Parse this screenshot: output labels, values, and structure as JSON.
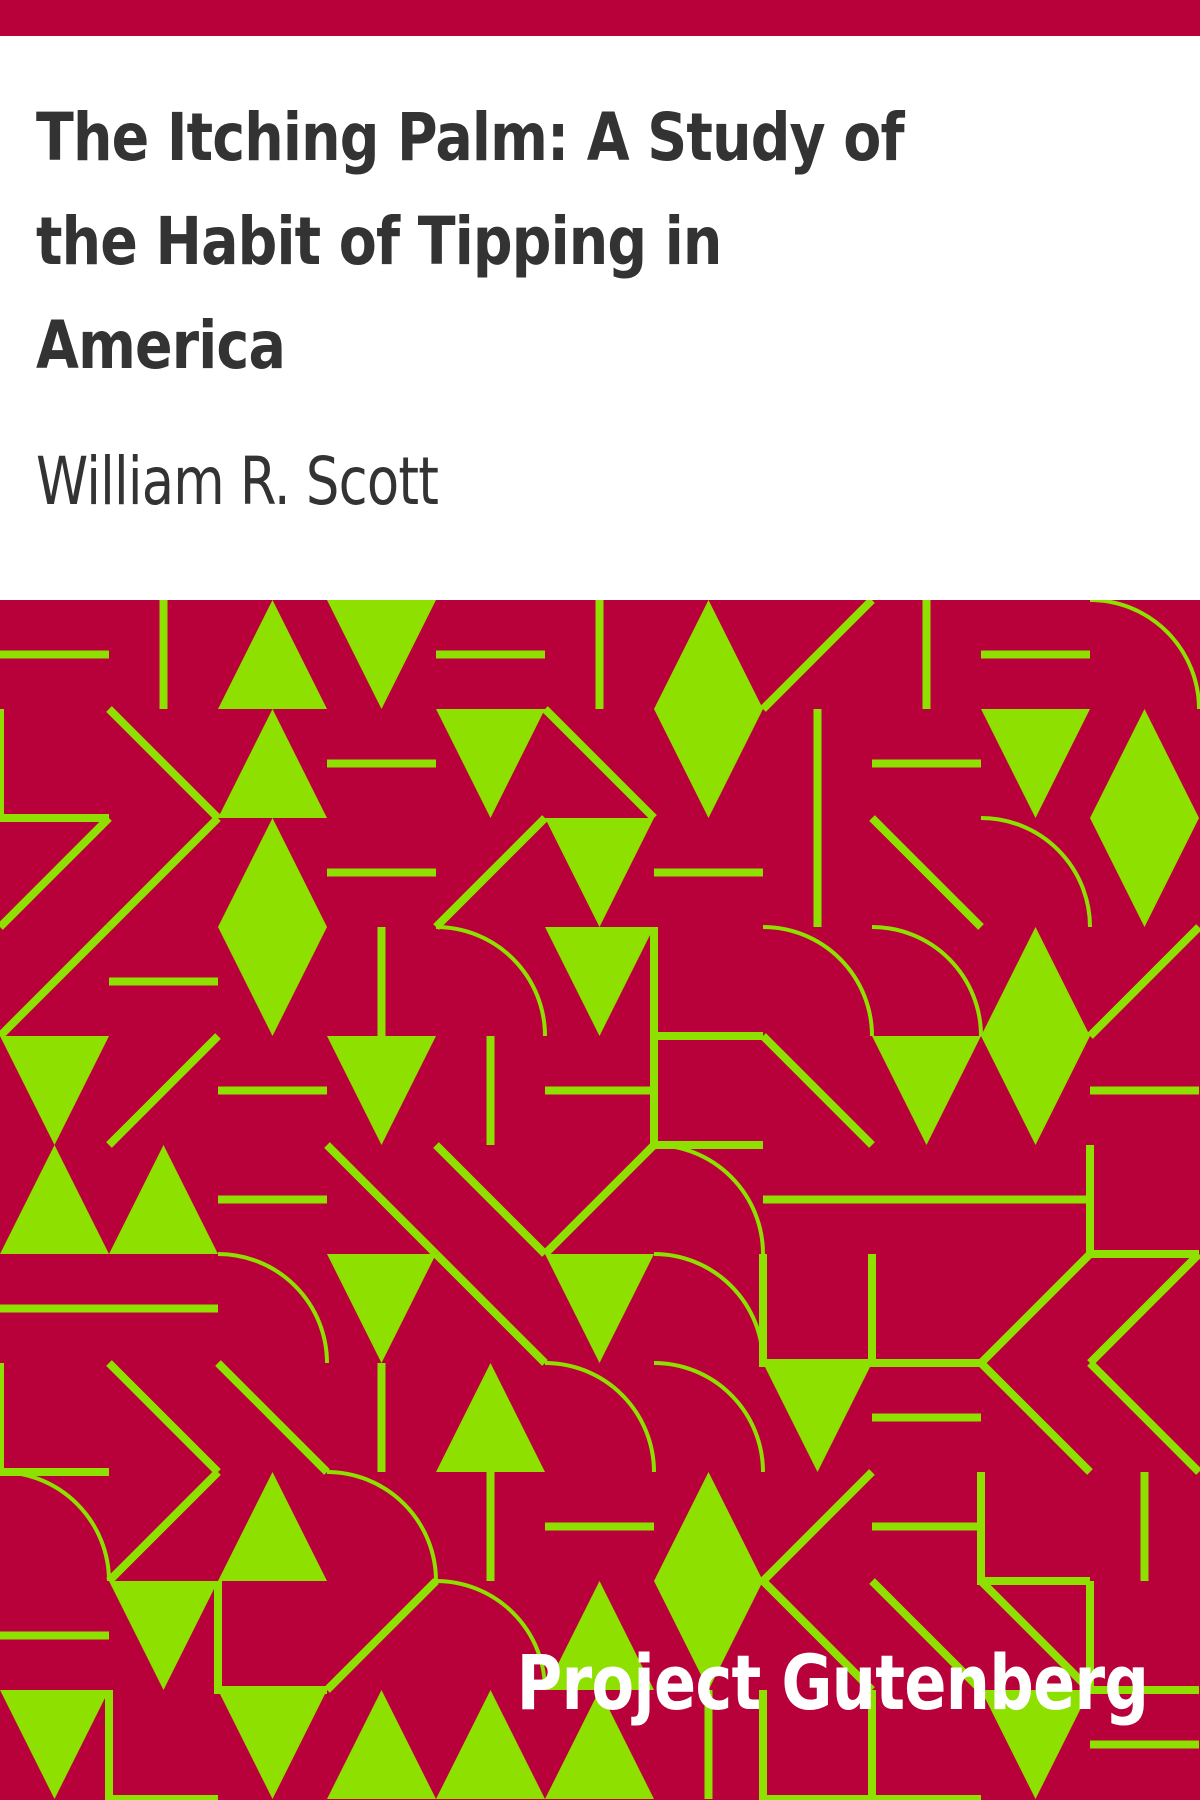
{
  "cover": {
    "title": "The Itching Palm: A Study of the Habit of Tipping in America",
    "author": "William R. Scott",
    "publisher": "Project Gutenberg"
  },
  "colors": {
    "background": "#b8003a",
    "accent": "#8ee000",
    "text": "#333333",
    "page": "#ffffff"
  },
  "pattern": {
    "description_icon": "geometric-shapes-pattern"
  }
}
